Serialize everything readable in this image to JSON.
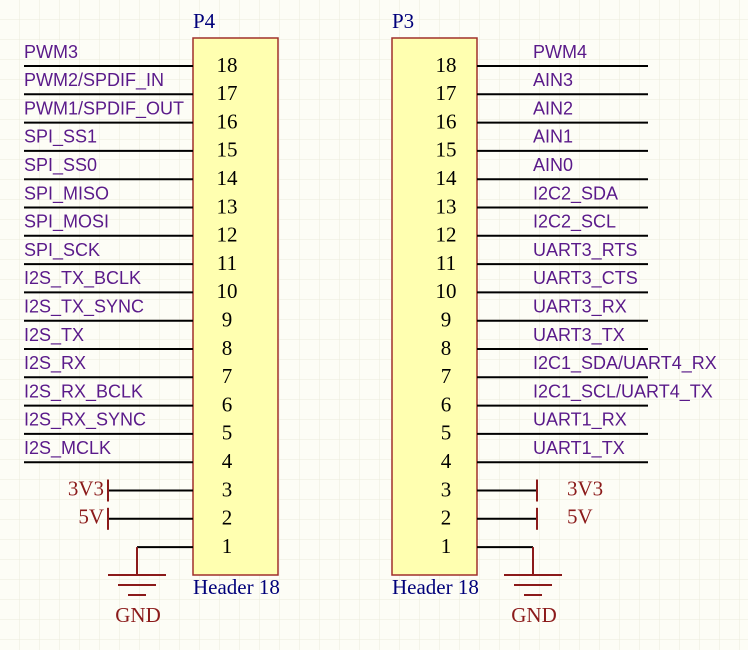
{
  "connectors": [
    {
      "designator": "P4",
      "comment": "Header 18",
      "pins": [
        "18",
        "17",
        "16",
        "15",
        "14",
        "13",
        "12",
        "11",
        "10",
        "9",
        "8",
        "7",
        "6",
        "5",
        "4",
        "3",
        "2",
        "1"
      ],
      "nets": [
        "PWM3",
        "PWM2/SPDIF_IN",
        "PWM1/SPDIF_OUT",
        "SPI_SS1",
        "SPI_SS0",
        "SPI_MISO",
        "SPI_MOSI",
        "SPI_SCK",
        "I2S_TX_BCLK",
        "I2S_TX_SYNC",
        "I2S_TX",
        "I2S_RX",
        "I2S_RX_BCLK",
        "I2S_RX_SYNC",
        "I2S_MCLK"
      ],
      "power": [
        "3V3",
        "5V"
      ],
      "ground": "GND"
    },
    {
      "designator": "P3",
      "comment": "Header 18",
      "pins": [
        "18",
        "17",
        "16",
        "15",
        "14",
        "13",
        "12",
        "11",
        "10",
        "9",
        "8",
        "7",
        "6",
        "5",
        "4",
        "3",
        "2",
        "1"
      ],
      "nets": [
        "PWM4",
        "AIN3",
        "AIN2",
        "AIN1",
        "AIN0",
        "I2C2_SDA",
        "I2C2_SCL",
        "UART3_RTS",
        "UART3_CTS",
        "UART3_RX",
        "UART3_TX",
        "I2C1_SDA/UART4_RX",
        "I2C1_SCL/UART4_TX",
        "UART1_RX",
        "UART1_TX"
      ],
      "power": [
        "3V3",
        "5V"
      ],
      "ground": "GND"
    }
  ]
}
